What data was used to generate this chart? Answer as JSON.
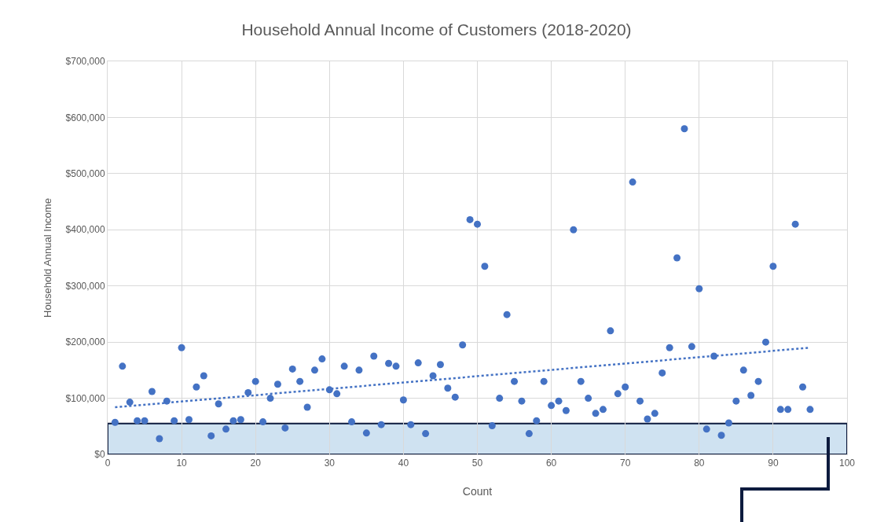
{
  "chart_data": {
    "type": "scatter",
    "title": "Household Annual Income of Customers (2018-2020)",
    "xlabel": "Count",
    "ylabel": "Household Annual Income",
    "x": [
      1,
      2,
      3,
      4,
      5,
      6,
      7,
      8,
      9,
      10,
      11,
      12,
      13,
      14,
      15,
      16,
      17,
      18,
      19,
      20,
      21,
      22,
      23,
      24,
      25,
      26,
      27,
      28,
      29,
      30,
      31,
      32,
      33,
      34,
      35,
      36,
      37,
      38,
      39,
      40,
      41,
      42,
      43,
      44,
      45,
      46,
      47,
      48,
      49,
      50,
      51,
      52,
      53,
      54,
      55,
      56,
      57,
      58,
      59,
      60,
      61,
      62,
      63,
      64,
      65,
      66,
      67,
      68,
      69,
      70,
      71,
      72,
      73,
      74,
      75,
      76,
      77,
      78,
      79,
      80,
      81,
      82,
      83,
      84,
      85,
      86,
      87,
      88,
      89,
      90,
      91,
      92,
      93,
      94,
      95
    ],
    "series": [
      {
        "color": "#4472c4",
        "marker": "circle",
        "values": [
          57000,
          157000,
          93000,
          60000,
          60000,
          112000,
          28000,
          95000,
          60000,
          190000,
          62000,
          120000,
          140000,
          33000,
          90000,
          45000,
          60000,
          62000,
          110000,
          130000,
          58000,
          100000,
          125000,
          47000,
          152000,
          130000,
          84000,
          150000,
          170000,
          115000,
          108000,
          157000,
          58000,
          150000,
          38000,
          175000,
          53000,
          162000,
          157000,
          97000,
          53000,
          163000,
          37000,
          140000,
          160000,
          118000,
          102000,
          195000,
          418000,
          410000,
          335000,
          51000,
          100000,
          249000,
          130000,
          95000,
          37000,
          60000,
          130000,
          87000,
          95000,
          78000,
          400000,
          130000,
          100000,
          73000,
          80000,
          220000,
          108000,
          120000,
          485000,
          95000,
          63000,
          73000,
          145000,
          190000,
          350000,
          580000,
          192000,
          295000,
          45000,
          175000,
          34000,
          56000,
          95000,
          150000,
          105000,
          130000,
          200000,
          335000,
          80000,
          80000,
          410000,
          120000,
          80000
        ]
      },
      {
        "type": "line",
        "color": "#4472c4",
        "line_style": "dotted",
        "x": [
          1,
          95
        ],
        "values": [
          84000,
          190000
        ]
      }
    ],
    "xlim": [
      0,
      100
    ],
    "xticks": [
      0,
      10,
      20,
      30,
      40,
      50,
      60,
      70,
      80,
      90,
      100
    ],
    "ylim": [
      0,
      700000
    ],
    "yticks": [
      {
        "value": 0,
        "label": "$0"
      },
      {
        "value": 100000,
        "label": "$100,000"
      },
      {
        "value": 200000,
        "label": "$200,000"
      },
      {
        "value": 300000,
        "label": "$300,000"
      },
      {
        "value": 400000,
        "label": "$400,000"
      },
      {
        "value": 500000,
        "label": "$500,000"
      },
      {
        "value": 600000,
        "label": "$600,000"
      },
      {
        "value": 700000,
        "label": "$700,000"
      }
    ],
    "bands": [
      {
        "axis": "y",
        "from": 0,
        "to": 55000,
        "color": "#cfe2f1"
      }
    ],
    "grid": true
  }
}
